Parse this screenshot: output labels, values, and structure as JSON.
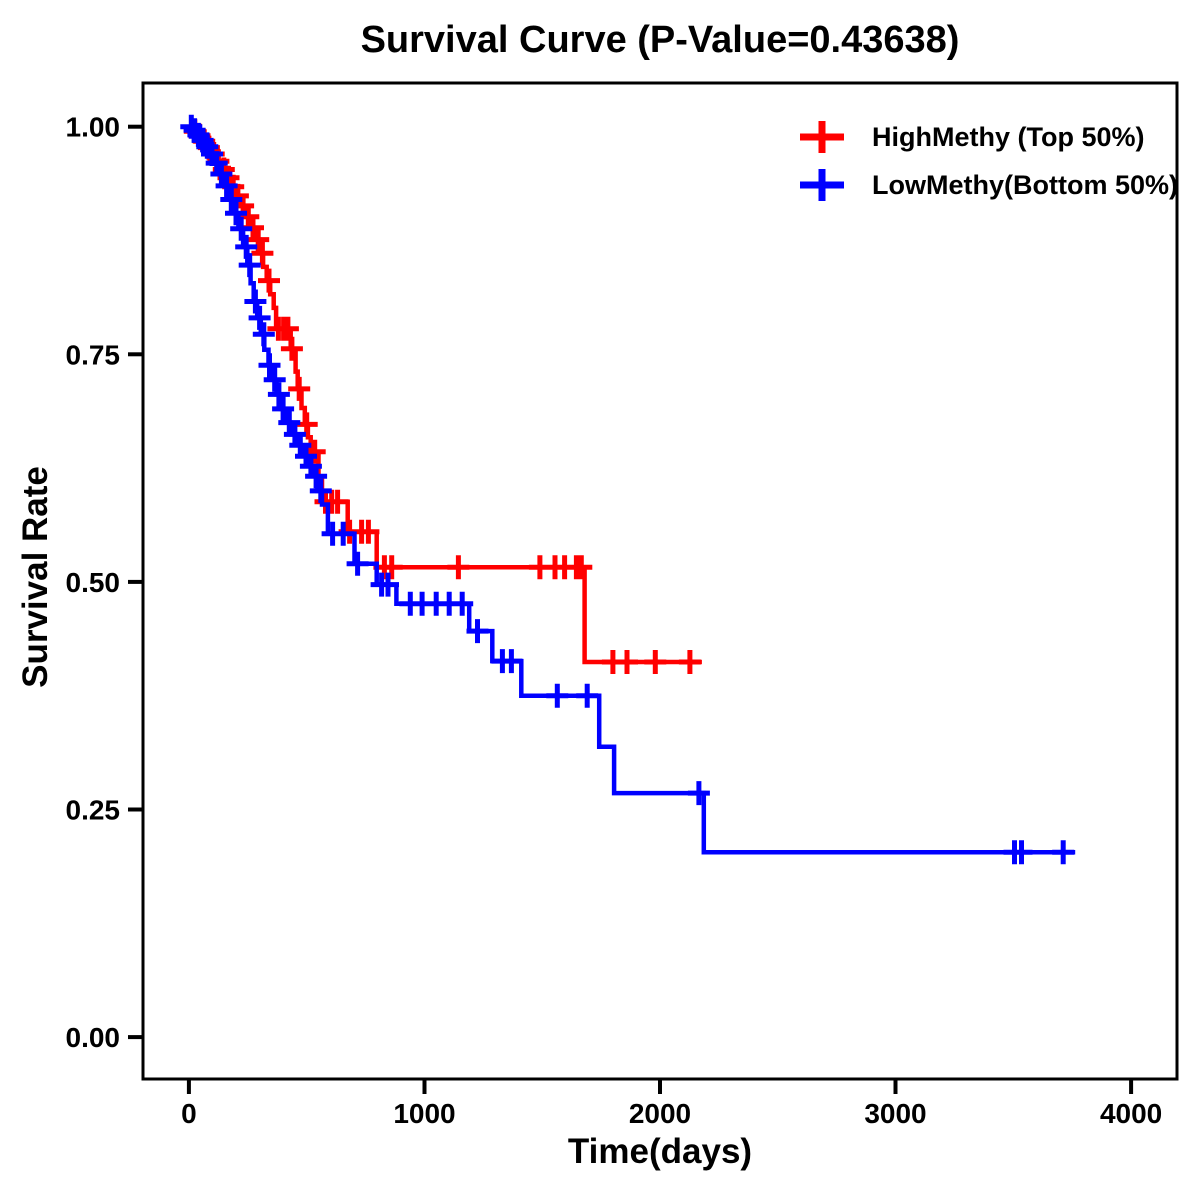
{
  "chart_data": {
    "type": "line",
    "variant": "kaplan_meier_step_survival",
    "title": "Survival Curve (P-Value=0.43638)",
    "p_value": 0.43638,
    "xlabel": "Time(days)",
    "ylabel": "Survival Rate",
    "xlim": [
      -195,
      4195
    ],
    "ylim": [
      -0.046,
      1.048
    ],
    "x_ticks": [
      0,
      1000,
      2000,
      3000,
      4000
    ],
    "x_tick_labels": [
      "0",
      "1000",
      "2000",
      "3000",
      "4000"
    ],
    "y_ticks": [
      0.0,
      0.25,
      0.5,
      0.75,
      1.0
    ],
    "y_tick_labels": [
      "0.00",
      "0.25",
      "0.50",
      "0.75",
      "1.00"
    ],
    "grid": false,
    "legend_position": "top-right-inside",
    "marker": "plus (censor tick)",
    "series": [
      {
        "name": "HighMethy (Top 50%)",
        "color": "#FF0000",
        "steps": [
          [
            0,
            1.0
          ],
          [
            20,
            0.995
          ],
          [
            40,
            0.99
          ],
          [
            60,
            0.984
          ],
          [
            80,
            0.977
          ],
          [
            100,
            0.97
          ],
          [
            120,
            0.962
          ],
          [
            140,
            0.953
          ],
          [
            160,
            0.944
          ],
          [
            180,
            0.934
          ],
          [
            200,
            0.924
          ],
          [
            220,
            0.913
          ],
          [
            240,
            0.901
          ],
          [
            260,
            0.889
          ],
          [
            280,
            0.876
          ],
          [
            300,
            0.861
          ],
          [
            315,
            0.846
          ],
          [
            330,
            0.831
          ],
          [
            345,
            0.816
          ],
          [
            360,
            0.801
          ],
          [
            370,
            0.778
          ],
          [
            432,
            0.756
          ],
          [
            453,
            0.731
          ],
          [
            462,
            0.712
          ],
          [
            478,
            0.691
          ],
          [
            492,
            0.673
          ],
          [
            505,
            0.659
          ],
          [
            517,
            0.643
          ],
          [
            550,
            0.615
          ],
          [
            565,
            0.588
          ],
          [
            674,
            0.555
          ],
          [
            797,
            0.516
          ],
          [
            1680,
            0.412
          ]
        ],
        "censor_times": [
          25,
          45,
          65,
          85,
          105,
          125,
          148,
          168,
          188,
          208,
          230,
          252,
          272,
          294,
          312,
          340,
          380,
          402,
          420,
          437,
          468,
          500,
          534,
          580,
          606,
          631,
          682,
          733,
          762,
          830,
          861,
          1144,
          1490,
          1554,
          1595,
          1645,
          1666,
          1800,
          1860,
          1980,
          2127
        ],
        "line_end_time": 2178
      },
      {
        "name": "LowMethy(Bottom 50%)",
        "color": "#0000FF",
        "steps": [
          [
            0,
            1.0
          ],
          [
            15,
            0.996
          ],
          [
            30,
            0.991
          ],
          [
            50,
            0.985
          ],
          [
            70,
            0.978
          ],
          [
            90,
            0.97
          ],
          [
            110,
            0.96
          ],
          [
            130,
            0.948
          ],
          [
            150,
            0.935
          ],
          [
            170,
            0.92
          ],
          [
            190,
            0.905
          ],
          [
            210,
            0.888
          ],
          [
            230,
            0.868
          ],
          [
            248,
            0.848
          ],
          [
            262,
            0.828
          ],
          [
            275,
            0.808
          ],
          [
            290,
            0.79
          ],
          [
            305,
            0.772
          ],
          [
            320,
            0.755
          ],
          [
            338,
            0.738
          ],
          [
            355,
            0.722
          ],
          [
            372,
            0.706
          ],
          [
            390,
            0.69
          ],
          [
            410,
            0.675
          ],
          [
            432,
            0.662
          ],
          [
            455,
            0.65
          ],
          [
            478,
            0.638
          ],
          [
            500,
            0.627
          ],
          [
            522,
            0.616
          ],
          [
            545,
            0.6
          ],
          [
            565,
            0.585
          ],
          [
            590,
            0.553
          ],
          [
            703,
            0.52
          ],
          [
            797,
            0.497
          ],
          [
            881,
            0.476
          ],
          [
            1190,
            0.446
          ],
          [
            1288,
            0.413
          ],
          [
            1411,
            0.375
          ],
          [
            1742,
            0.319
          ],
          [
            1805,
            0.268
          ],
          [
            2186,
            0.203
          ]
        ],
        "censor_times": [
          10,
          24,
          40,
          58,
          78,
          98,
          118,
          138,
          160,
          180,
          200,
          222,
          243,
          258,
          282,
          300,
          318,
          342,
          364,
          382,
          400,
          426,
          450,
          473,
          497,
          518,
          540,
          560,
          610,
          655,
          716,
          818,
          845,
          940,
          990,
          1050,
          1105,
          1160,
          1225,
          1331,
          1369,
          1564,
          1691,
          2165,
          3505,
          3535,
          3712
        ],
        "line_end_time": 3763
      }
    ]
  }
}
